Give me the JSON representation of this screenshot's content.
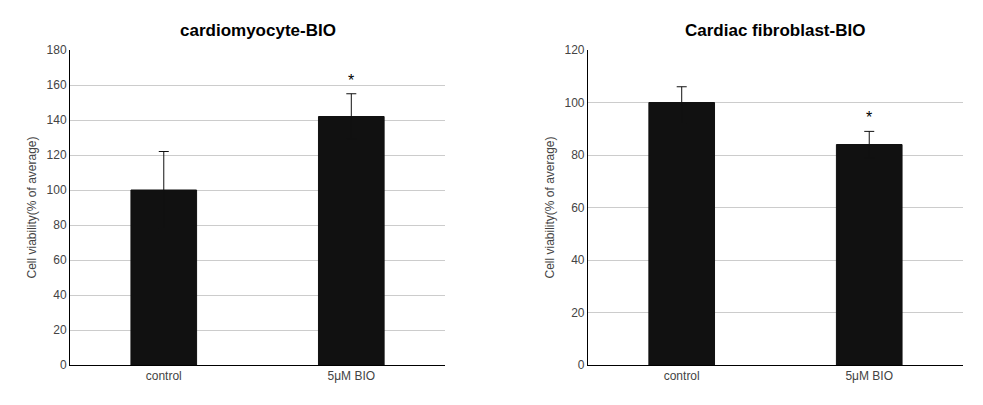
{
  "chart_data": [
    {
      "type": "bar",
      "title": "cardiomyocyte-BIO",
      "categories": [
        "control",
        "5μM BIO"
      ],
      "values": [
        100,
        142
      ],
      "errors_upper": [
        22,
        13
      ],
      "errors_lower": [
        22,
        13
      ],
      "color": "#111111",
      "ylabel": "Cell viability(% of average)",
      "ylim": [
        0,
        180
      ],
      "yticks": [
        0,
        20,
        40,
        60,
        80,
        100,
        120,
        140,
        160,
        180
      ],
      "grid": true,
      "annotations": [
        {
          "text": "*",
          "category": "5μM BIO"
        }
      ]
    },
    {
      "type": "bar",
      "title": "Cardiac fibroblast-BIO",
      "categories": [
        "control",
        "5μM BIO"
      ],
      "values": [
        100,
        84
      ],
      "errors_upper": [
        6,
        5
      ],
      "errors_lower": [
        8,
        5
      ],
      "color": "#111111",
      "ylabel": "Cell viability(% of average)",
      "ylim": [
        0,
        120
      ],
      "yticks": [
        0,
        20,
        40,
        60,
        80,
        100,
        120
      ],
      "grid": true,
      "annotations": [
        {
          "text": "*",
          "category": "5μM BIO"
        }
      ]
    }
  ]
}
